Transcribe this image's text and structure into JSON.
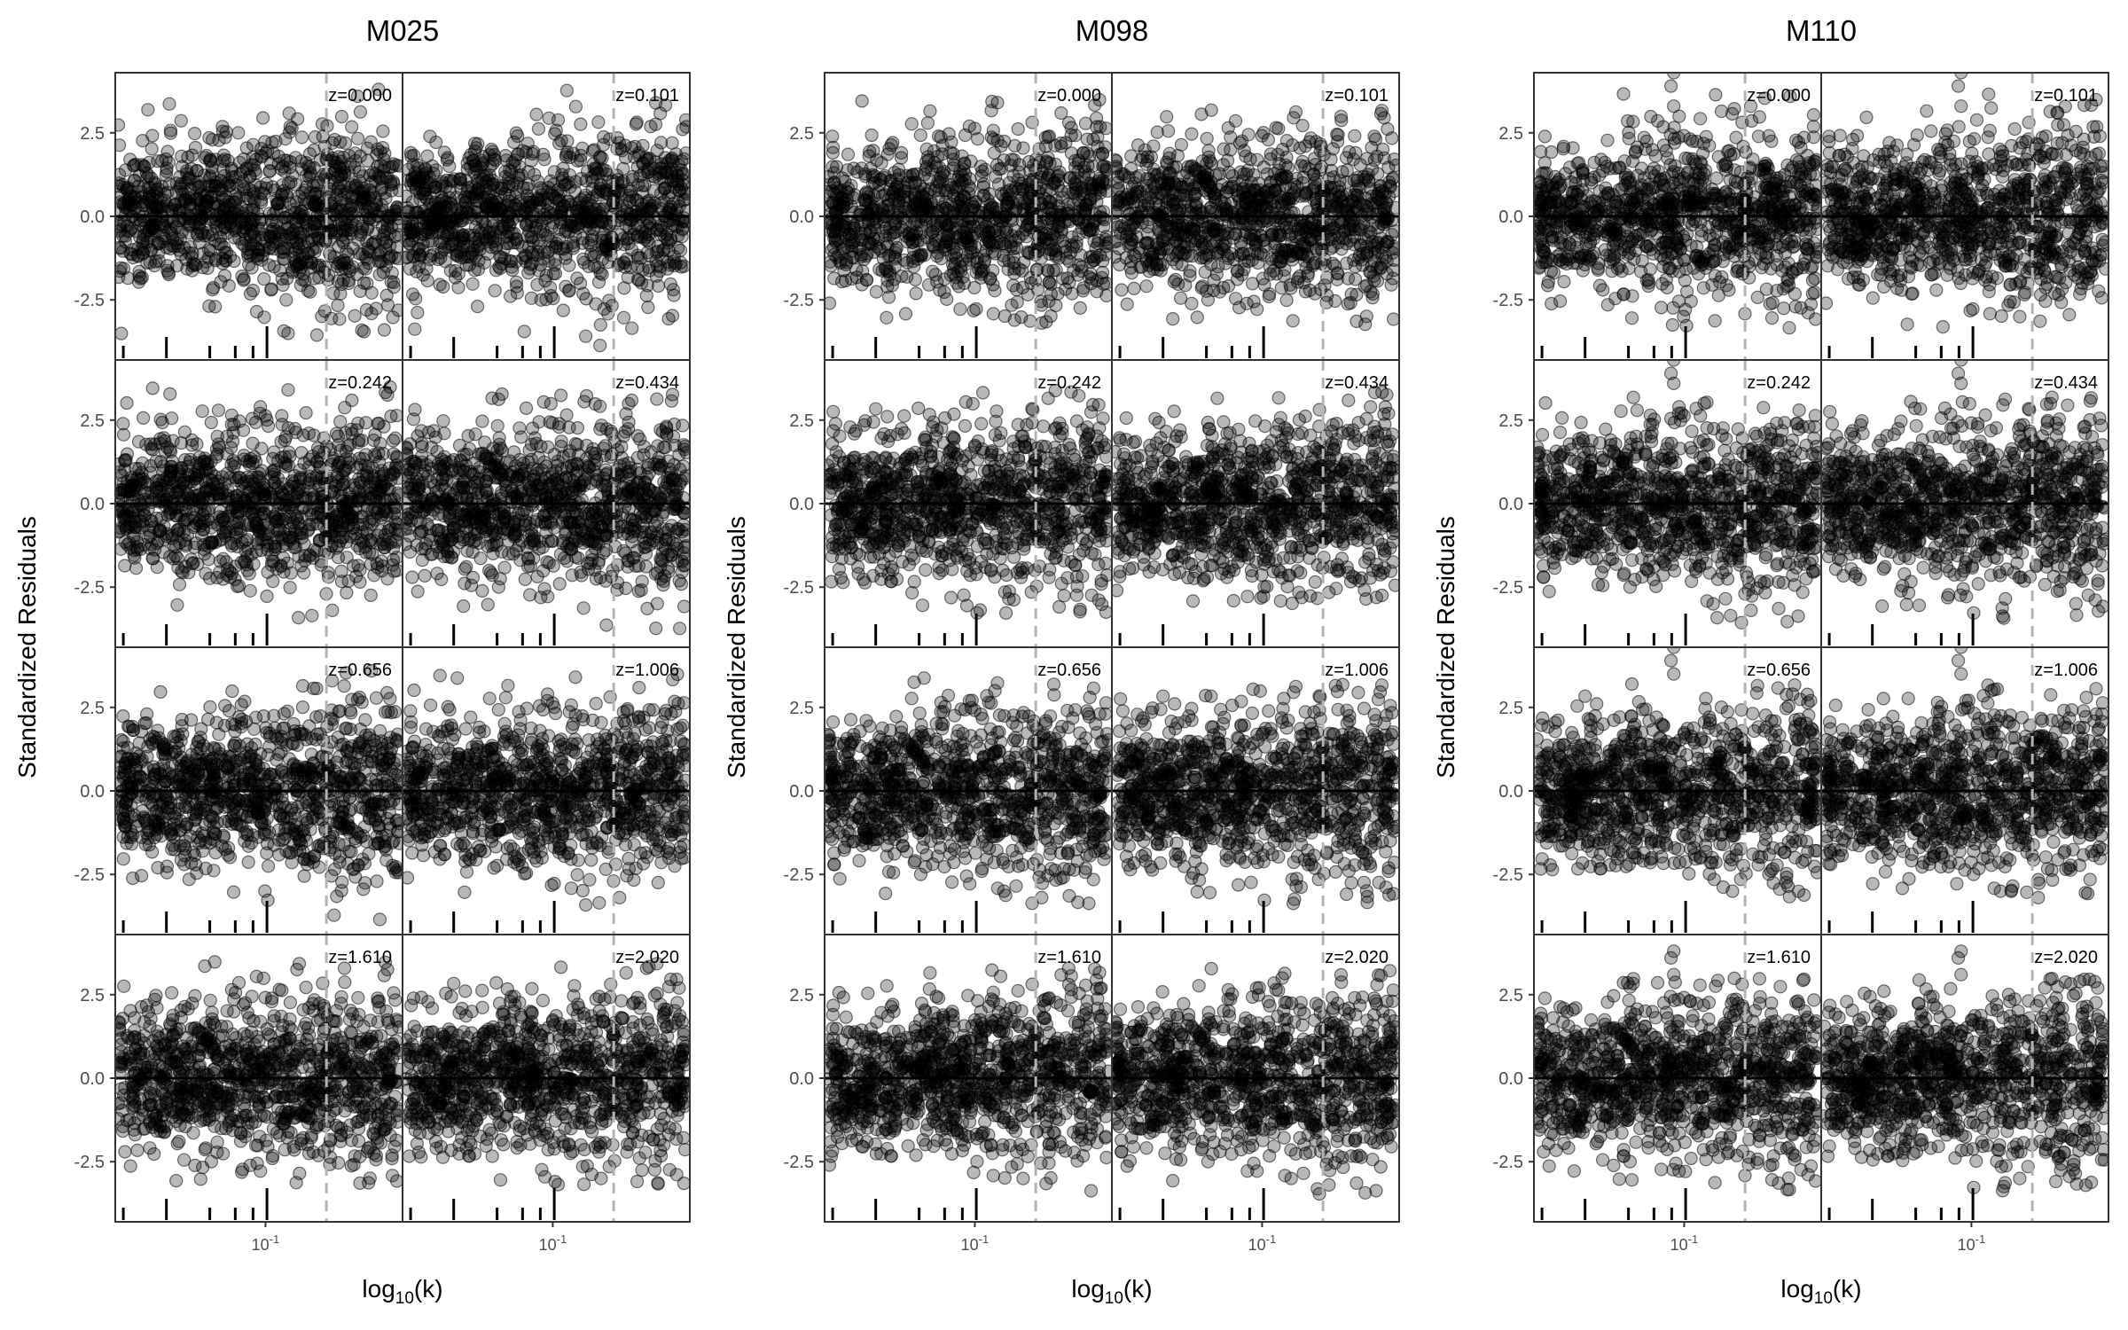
{
  "chart_data": {
    "type": "scatter",
    "layout": "three blocks, each a 4x2 grid of panels",
    "ylabel": "Standardized Residuals",
    "xlabel": "log10(k)",
    "x_scale": "log",
    "xlim": [
      0.03,
      0.3
    ],
    "ylim": [
      -4.3,
      4.3
    ],
    "y_ticks": [
      -2.5,
      0.0,
      2.5
    ],
    "y_tick_labels": [
      "-2.5",
      "0.0",
      "2.5"
    ],
    "x_ticks": [
      0.1
    ],
    "x_tick_label_base": "10",
    "x_tick_label_exp": "-1",
    "reference_lines": {
      "horizontal_y": 0.0,
      "vertical_dashed_x": 0.163
    },
    "rug_ticks_x": [
      0.032,
      0.0452,
      0.064,
      0.0785,
      0.0905,
      0.1012
    ],
    "redshifts": [
      "z=0.000",
      "z=0.101",
      "z=0.242",
      "z=0.434",
      "z=0.656",
      "z=1.006",
      "z=1.610",
      "z=2.020"
    ],
    "models": [
      {
        "name": "M025",
        "panels": [
          {
            "label": "z=0.000",
            "y_range": [
              -4.0,
              4.2
            ],
            "outliers": []
          },
          {
            "label": "z=0.101",
            "y_range": [
              -3.9,
              4.0
            ],
            "outliers": []
          },
          {
            "label": "z=0.242",
            "y_range": [
              -3.8,
              3.5
            ],
            "outliers": []
          },
          {
            "label": "z=0.434",
            "y_range": [
              -3.8,
              3.3
            ],
            "outliers": []
          },
          {
            "label": "z=0.656",
            "y_range": [
              -3.9,
              3.6
            ],
            "outliers": []
          },
          {
            "label": "z=1.006",
            "y_range": [
              -3.8,
              3.6
            ],
            "outliers": []
          },
          {
            "label": "z=1.610",
            "y_range": [
              -3.2,
              3.5
            ],
            "outliers": []
          },
          {
            "label": "z=2.020",
            "y_range": [
              -3.2,
              3.6
            ],
            "outliers": []
          }
        ]
      },
      {
        "name": "M098",
        "panels": [
          {
            "label": "z=0.000",
            "y_range": [
              -3.3,
              3.5
            ],
            "outliers": []
          },
          {
            "label": "z=0.101",
            "y_range": [
              -3.3,
              3.2
            ],
            "outliers": []
          },
          {
            "label": "z=0.242",
            "y_range": [
              -3.3,
              3.4
            ],
            "outliers": []
          },
          {
            "label": "z=0.434",
            "y_range": [
              -3.0,
              3.4
            ],
            "outliers": []
          },
          {
            "label": "z=0.656",
            "y_range": [
              -3.4,
              3.4
            ],
            "outliers": []
          },
          {
            "label": "z=1.006",
            "y_range": [
              -3.4,
              3.2
            ],
            "outliers": []
          },
          {
            "label": "z=1.610",
            "y_range": [
              -3.5,
              3.3
            ],
            "outliers": []
          },
          {
            "label": "z=2.020",
            "y_range": [
              -3.5,
              3.3
            ],
            "outliers": []
          }
        ]
      },
      {
        "name": "M110",
        "panels": [
          {
            "label": "z=0.000",
            "y_range": [
              -3.6,
              4.3
            ],
            "outliers": [
              [
                0.092,
                4.3
              ],
              [
                0.09,
                3.9
              ],
              [
                0.092,
                3.3
              ]
            ]
          },
          {
            "label": "z=0.101",
            "y_range": [
              -3.4,
              4.3
            ],
            "outliers": [
              [
                0.092,
                4.3
              ],
              [
                0.09,
                3.9
              ],
              [
                0.092,
                3.3
              ]
            ]
          },
          {
            "label": "z=0.242",
            "y_range": [
              -3.6,
              3.2
            ],
            "outliers": [
              [
                0.092,
                4.3
              ],
              [
                0.09,
                3.9
              ],
              [
                0.092,
                3.6
              ]
            ]
          },
          {
            "label": "z=0.434",
            "y_range": [
              -3.5,
              3.2
            ],
            "outliers": [
              [
                0.092,
                4.3
              ],
              [
                0.09,
                3.9
              ],
              [
                0.092,
                3.6
              ]
            ]
          },
          {
            "label": "z=0.656",
            "y_range": [
              -3.2,
              3.2
            ],
            "outliers": [
              [
                0.092,
                4.3
              ],
              [
                0.09,
                3.9
              ],
              [
                0.092,
                3.5
              ]
            ]
          },
          {
            "label": "z=1.006",
            "y_range": [
              -3.2,
              3.2
            ],
            "outliers": [
              [
                0.092,
                4.3
              ],
              [
                0.09,
                3.9
              ],
              [
                0.092,
                3.5
              ]
            ]
          },
          {
            "label": "z=1.610",
            "y_range": [
              -3.4,
              3.0
            ],
            "outliers": [
              [
                0.092,
                3.8
              ],
              [
                0.09,
                3.6
              ],
              [
                0.092,
                3.1
              ]
            ]
          },
          {
            "label": "z=2.020",
            "y_range": [
              -3.4,
              3.0
            ],
            "outliers": [
              [
                0.092,
                3.8
              ],
              [
                0.09,
                3.6
              ],
              [
                0.092,
                3.1
              ]
            ]
          }
        ]
      }
    ],
    "colors": {
      "points": "#000000",
      "point_fill_opacity": 0.28,
      "zero_line": "#000000",
      "dashed_line": "#b3b3b3",
      "panel_border": "#333333",
      "tick_text": "#4d4d4d"
    }
  }
}
